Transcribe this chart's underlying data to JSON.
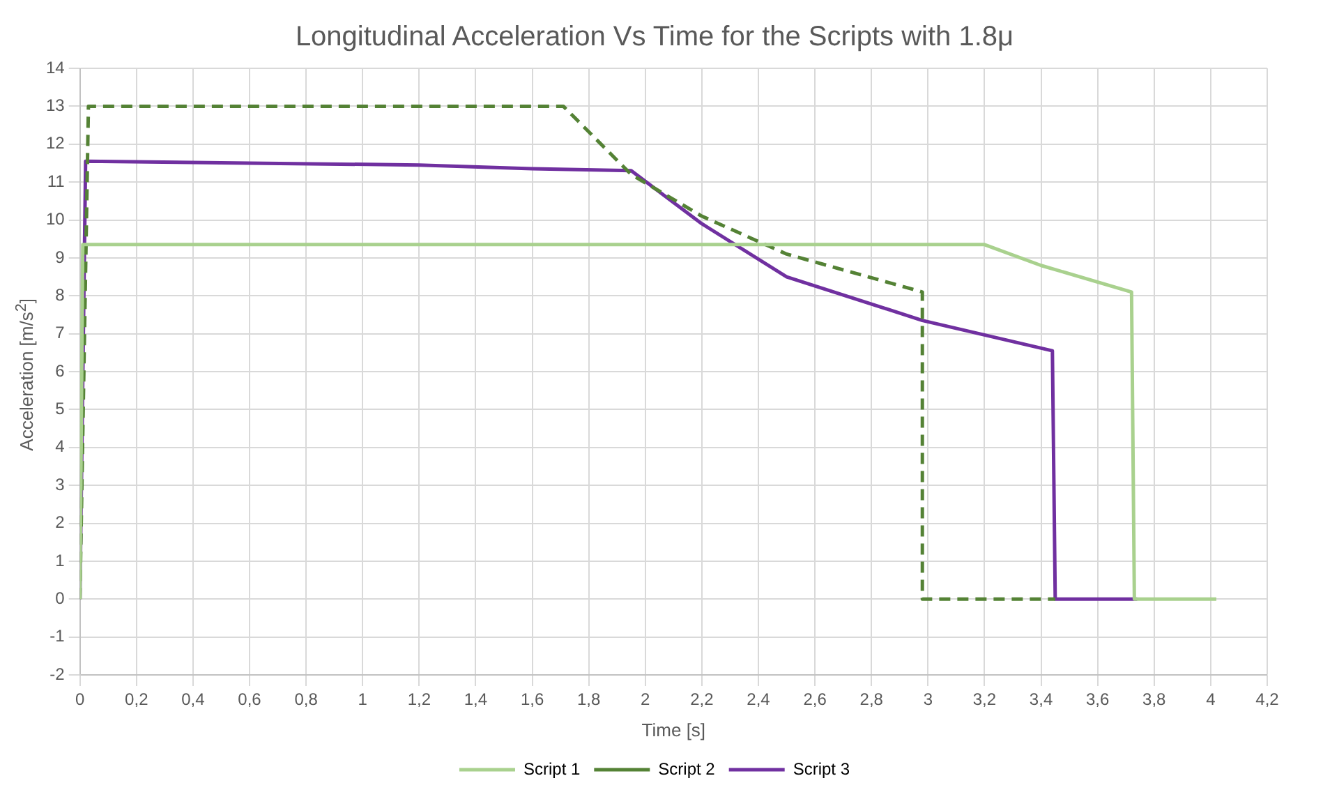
{
  "chart_data": {
    "type": "line",
    "title": "Longitudinal Acceleration Vs Time for the Scripts with 1.8μ",
    "xlabel": "Time [s]",
    "ylabel": "Acceleration [m/s$^{2}$]",
    "xlim": [
      0,
      4.2
    ],
    "xticks": [
      0,
      {
        "value": 0.2,
        "label": "0,2"
      },
      {
        "value": 0.4,
        "label": "0,4"
      },
      {
        "value": 0.6,
        "label": "0,6"
      },
      {
        "value": 0.8,
        "label": "0,8"
      },
      1,
      {
        "value": 1.2,
        "label": "1,2"
      },
      {
        "value": 1.4,
        "label": "1,4"
      },
      {
        "value": 1.6,
        "label": "1,6"
      },
      {
        "value": 1.8,
        "label": "1,8"
      },
      2,
      {
        "value": 2.2,
        "label": "2,2"
      },
      {
        "value": 2.4,
        "label": "2,4"
      },
      {
        "value": 2.6,
        "label": "2,6"
      },
      {
        "value": 2.8,
        "label": "2,8"
      },
      3,
      {
        "value": 3.2,
        "label": "3,2"
      },
      {
        "value": 3.4,
        "label": "3,4"
      },
      {
        "value": 3.6,
        "label": "3,6"
      },
      {
        "value": 3.8,
        "label": "3,8"
      },
      4,
      {
        "value": 4.2,
        "label": "4,2"
      }
    ],
    "ylim": [
      -2,
      14
    ],
    "yticks": [
      -2,
      -1,
      0,
      1,
      2,
      3,
      4,
      5,
      6,
      7,
      8,
      9,
      10,
      11,
      12,
      13,
      14
    ],
    "grid": true,
    "legend": "bottom",
    "marker": "none",
    "series": [
      {
        "name": "Script 1",
        "color": "#a9d18e",
        "line_style": "solid",
        "x": [
          0,
          0.01,
          3.2,
          3.4,
          3.72,
          3.73,
          4.02
        ],
        "values": [
          0,
          9.35,
          9.35,
          8.8,
          8.1,
          0,
          0
        ]
      },
      {
        "name": "Script 2",
        "color": "#548235",
        "line_style": "dashed",
        "x": [
          0,
          0.03,
          1.71,
          1.95,
          2.2,
          2.5,
          2.98,
          2.98,
          3.45
        ],
        "values": [
          0,
          13,
          13,
          11.2,
          10.1,
          9.1,
          8.1,
          0,
          0
        ]
      },
      {
        "name": "Script 3",
        "color": "#7030a0",
        "line_style": "solid",
        "x": [
          0,
          0.02,
          0.6,
          1.2,
          1.6,
          1.95,
          2.2,
          2.5,
          2.98,
          3.44,
          3.45,
          3.74
        ],
        "values": [
          0,
          11.55,
          11.5,
          11.45,
          11.35,
          11.3,
          9.9,
          8.5,
          7.35,
          6.55,
          0,
          0
        ]
      }
    ]
  }
}
